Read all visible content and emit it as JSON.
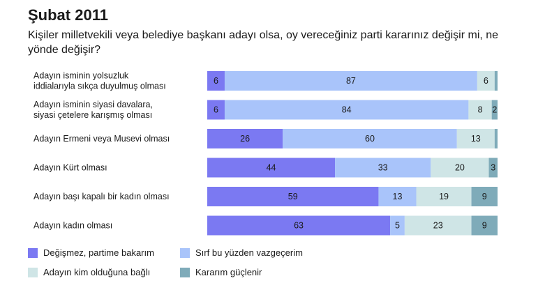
{
  "chart_data": {
    "type": "bar",
    "orientation": "horizontal",
    "stacked": true,
    "title": "Şubat 2011",
    "subtitle": "Kişiler milletvekili veya belediye başkanı adayı olsa, oy vereceğiniz parti kararınız değişir mi, ne yönde değişir?",
    "categories": [
      [
        "Adayın isminin yolsuzluk",
        "iddialarıyla sıkça duyulmuş olması"
      ],
      [
        "Adayın isminin siyasi davalara,",
        "siyasi çetelere karışmış olması"
      ],
      [
        "Adayın Ermeni veya Musevi olması"
      ],
      [
        "Adayın Kürt olması"
      ],
      [
        "Adayın başı kapalı bir kadın olması"
      ],
      [
        "Adayın kadın olması"
      ]
    ],
    "series": [
      {
        "name": "Değişmez, partime bakarım",
        "color": "#7b79f2",
        "values": [
          6,
          6,
          26,
          44,
          59,
          63
        ]
      },
      {
        "name": "Sırf bu yüzden vazgeçerim",
        "color": "#a9c4fa",
        "values": [
          87,
          84,
          60,
          33,
          13,
          5
        ]
      },
      {
        "name": "Adayın kim olduğuna bağlı",
        "color": "#cfe5e6",
        "values": [
          6,
          8,
          13,
          20,
          19,
          23
        ]
      },
      {
        "name": "Kararım güçlenir",
        "color": "#7fabb9",
        "values": [
          1,
          2,
          1,
          3,
          9,
          9
        ]
      }
    ],
    "show_value_min": 2,
    "xlim": [
      0,
      100
    ],
    "grid": false,
    "legend_position": "bottom"
  }
}
